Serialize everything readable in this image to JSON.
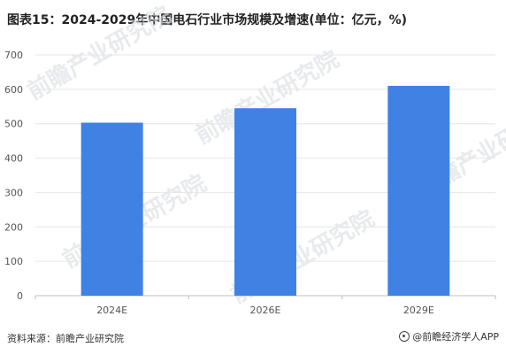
{
  "title": "图表15：2024-2029年中国电石行业市场规模及增速(单位：亿元，%)",
  "source": "资料来源：前瞻产业研究院",
  "brand": "@前瞻经济学人APP",
  "watermark": "前瞻产业研究院",
  "colors": {
    "bar": "#3f82e4",
    "grid": "#e6e6e6",
    "axis": "#bfbfbf",
    "text": "#555555"
  },
  "chart_data": {
    "type": "bar",
    "categories": [
      "2024E",
      "2026E",
      "2029E"
    ],
    "values": [
      503,
      545,
      610
    ],
    "ylim": [
      0,
      700
    ],
    "yticks": [
      0,
      100,
      200,
      300,
      400,
      500,
      600,
      700
    ],
    "grid": true
  }
}
